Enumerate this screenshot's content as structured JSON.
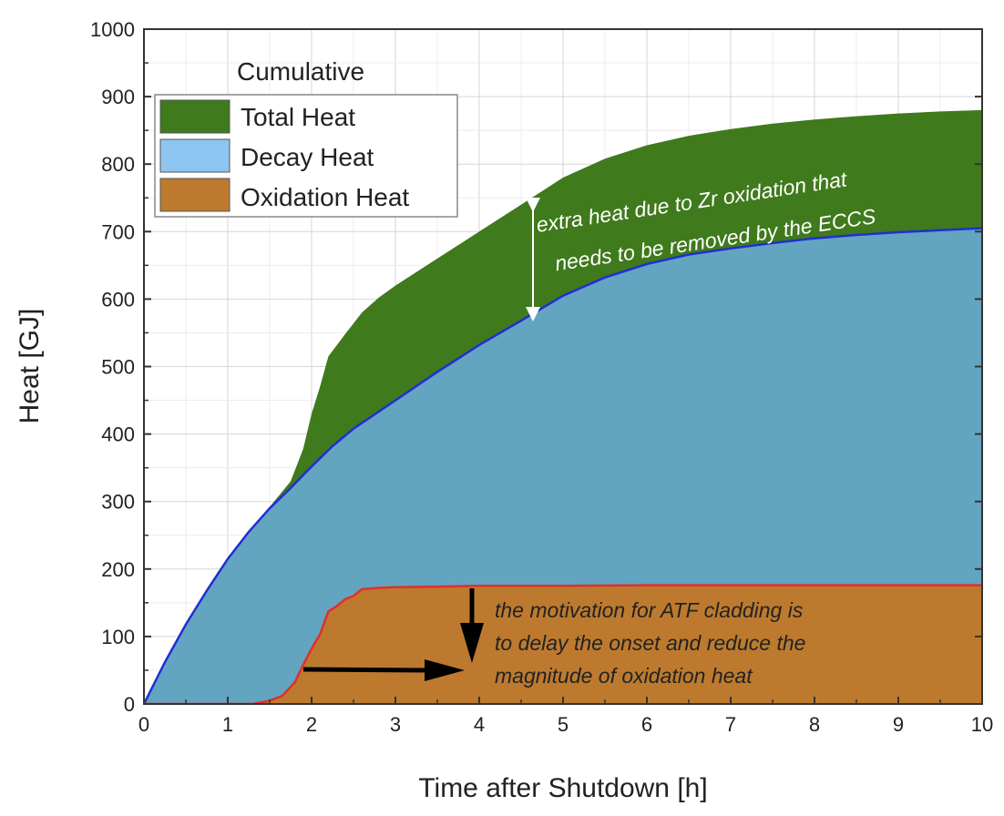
{
  "chart_data": {
    "type": "area",
    "xlabel": "Time after Shutdown [h]",
    "ylabel": "Heat [GJ]",
    "xlim": [
      0,
      10
    ],
    "ylim": [
      0,
      1000
    ],
    "x_ticks": [
      "0",
      "1",
      "2",
      "3",
      "4",
      "5",
      "6",
      "7",
      "8",
      "9",
      "10"
    ],
    "y_ticks": [
      "0",
      "100",
      "200",
      "300",
      "400",
      "500",
      "600",
      "700",
      "800",
      "900",
      "1000"
    ],
    "grid": true,
    "legend": {
      "title": "Cumulative",
      "placement": "top-left",
      "entries": [
        "Total Heat",
        "Decay Heat",
        "Oxidation Heat"
      ]
    },
    "series": [
      {
        "name": "Total Heat",
        "color": "#3f7a1c",
        "points": [
          [
            0,
            0
          ],
          [
            0.25,
            62
          ],
          [
            0.5,
            118
          ],
          [
            0.75,
            168
          ],
          [
            1,
            215
          ],
          [
            1.25,
            255
          ],
          [
            1.5,
            292
          ],
          [
            1.75,
            330
          ],
          [
            1.9,
            378
          ],
          [
            2.0,
            430
          ],
          [
            2.1,
            470
          ],
          [
            2.2,
            515
          ],
          [
            2.4,
            548
          ],
          [
            2.6,
            580
          ],
          [
            2.8,
            602
          ],
          [
            3,
            620
          ],
          [
            3.5,
            660
          ],
          [
            4,
            700
          ],
          [
            4.5,
            740
          ],
          [
            5,
            780
          ],
          [
            5.5,
            808
          ],
          [
            6,
            828
          ],
          [
            6.5,
            842
          ],
          [
            7,
            852
          ],
          [
            7.5,
            860
          ],
          [
            8,
            866
          ],
          [
            8.5,
            871
          ],
          [
            9,
            875
          ],
          [
            9.5,
            878
          ],
          [
            10,
            880
          ]
        ]
      },
      {
        "name": "Decay Heat",
        "color": "#63a4c1",
        "line_color": "#1f2fd1",
        "points": [
          [
            0,
            0
          ],
          [
            0.25,
            62
          ],
          [
            0.5,
            118
          ],
          [
            0.75,
            168
          ],
          [
            1,
            215
          ],
          [
            1.25,
            255
          ],
          [
            1.5,
            290
          ],
          [
            1.75,
            320
          ],
          [
            2,
            352
          ],
          [
            2.25,
            382
          ],
          [
            2.5,
            408
          ],
          [
            3,
            450
          ],
          [
            3.5,
            492
          ],
          [
            4,
            532
          ],
          [
            4.5,
            568
          ],
          [
            5,
            605
          ],
          [
            5.5,
            632
          ],
          [
            6,
            652
          ],
          [
            6.5,
            666
          ],
          [
            7,
            675
          ],
          [
            7.5,
            683
          ],
          [
            8,
            690
          ],
          [
            8.5,
            695
          ],
          [
            9,
            699
          ],
          [
            9.5,
            702
          ],
          [
            10,
            705
          ]
        ]
      },
      {
        "name": "Oxidation Heat",
        "color": "#bd7a2e",
        "line_color": "#e0302a",
        "points": [
          [
            0,
            0
          ],
          [
            1.3,
            0
          ],
          [
            1.5,
            5
          ],
          [
            1.65,
            12
          ],
          [
            1.8,
            32
          ],
          [
            1.9,
            58
          ],
          [
            2.0,
            82
          ],
          [
            2.1,
            103
          ],
          [
            2.2,
            137
          ],
          [
            2.3,
            145
          ],
          [
            2.4,
            155
          ],
          [
            2.5,
            160
          ],
          [
            2.6,
            170
          ],
          [
            2.8,
            172
          ],
          [
            3,
            173
          ],
          [
            3.5,
            174
          ],
          [
            4,
            175
          ],
          [
            5,
            175
          ],
          [
            6,
            176
          ],
          [
            7,
            176
          ],
          [
            8,
            176
          ],
          [
            9,
            176
          ],
          [
            10,
            176
          ]
        ]
      }
    ],
    "annotations": [
      {
        "text": "extra heat due to Zr oxidation that needs to be removed by the ECCS",
        "color": "#ffffff"
      },
      {
        "text": "the motivation for ATF cladding is to delay the onset and reduce the magnitude of oxidation heat",
        "color": "#222222"
      }
    ]
  },
  "annotation_lines": {
    "green": [
      "extra heat due to Zr oxidation that",
      "needs to be removed by the ECCS"
    ],
    "orange": [
      "the motivation for ATF cladding is",
      "to delay the onset and reduce the",
      "magnitude of oxidation heat"
    ]
  }
}
